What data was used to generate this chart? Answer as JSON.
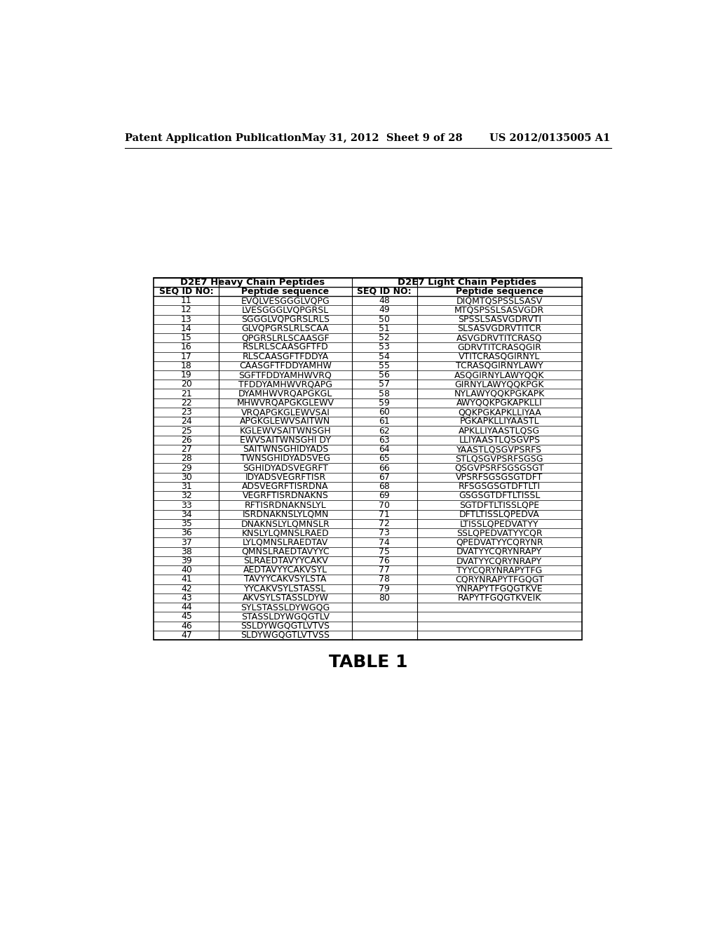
{
  "page_header_left": "Patent Application Publication",
  "page_header_mid": "May 31, 2012  Sheet 9 of 28",
  "page_header_right": "US 2012/0135005 A1",
  "table_caption": "TABLE 1",
  "col_headers": [
    "D2E7 Heavy Chain Peptides",
    "D2E7 Light Chain Peptides"
  ],
  "sub_headers": [
    "SEQ ID NO:",
    "Peptide sequence",
    "SEQ ID NO:",
    "Peptide sequence"
  ],
  "heavy_chain": [
    [
      "11",
      "EVQLVESGGGLVQPG"
    ],
    [
      "12",
      "LVESGGGLVQPGRSL"
    ],
    [
      "13",
      "SGGGLVQPGRSLRLS"
    ],
    [
      "14",
      "GLVQPGRSLRLSCAA"
    ],
    [
      "15",
      "QPGRSLRLSCAASGF"
    ],
    [
      "16",
      "RSLRLSCAASGFTFD"
    ],
    [
      "17",
      "RLSCAASGFTFDDYA"
    ],
    [
      "18",
      "CAASGFTFDDYAMHW"
    ],
    [
      "19",
      "SGFTFDDYAMHWVRQ"
    ],
    [
      "20",
      "TFDDYAMHWVRQAPG"
    ],
    [
      "21",
      "DYAMHWVRQAPGKGL"
    ],
    [
      "22",
      "MHWVRQAPGKGLEWV"
    ],
    [
      "23",
      "VRQAPGKGLEWVSAI"
    ],
    [
      "24",
      "APGKGLEWVSAITWN"
    ],
    [
      "25",
      "KGLEWVSAITWNSGH"
    ],
    [
      "26",
      "EWVSAITWNSGHI DY"
    ],
    [
      "27",
      "SAITWNSGHIDYADS"
    ],
    [
      "28",
      "TWNSGHIDYADSVEG"
    ],
    [
      "29",
      "SGHIDYADSVEGRFT"
    ],
    [
      "30",
      "IDYADSVEGRFTISR"
    ],
    [
      "31",
      "ADSVEGRFTISRDNA"
    ],
    [
      "32",
      "VEGRFTISRDNAKNS"
    ],
    [
      "33",
      "RFTISRDNAKNSLYL"
    ],
    [
      "34",
      "ISRDNAKNSLYLQMN"
    ],
    [
      "35",
      "DNAKNSLYLQMNSLR"
    ],
    [
      "36",
      "KNSLYLQMNSLRAED"
    ],
    [
      "37",
      "LYLQMNSLRAEDTAV"
    ],
    [
      "38",
      "QMNSLRAEDTAVYYC"
    ],
    [
      "39",
      "SLRAEDTAVYYCAKV"
    ],
    [
      "40",
      "AEDTAVYYCAKVSYL"
    ],
    [
      "41",
      "TAVYYCAKVSYLSTA"
    ],
    [
      "42",
      "YYCAKVSYLSTASSL"
    ],
    [
      "43",
      "AKVSYLSTASSLDYW"
    ],
    [
      "44",
      "SYLSTASSLDYWGQG"
    ],
    [
      "45",
      "STASSLDYWGQGTLV"
    ],
    [
      "46",
      "SSLDYWGQGTLVTVS"
    ],
    [
      "47",
      "SLDYWGQGTLVTVSS"
    ]
  ],
  "light_chain": [
    [
      "48",
      "DIQMTQSPSSLSASV"
    ],
    [
      "49",
      "MTQSPSSLSASVGDR"
    ],
    [
      "50",
      "SPSSLSASVGDRVTI"
    ],
    [
      "51",
      "SLSASVGDRVTITCR"
    ],
    [
      "52",
      "ASVGDRVTITCRASQ"
    ],
    [
      "53",
      "GDRVTITCRASQGIR"
    ],
    [
      "54",
      "VTITCRASQGIRNYL"
    ],
    [
      "55",
      "TCRASQGIRNYLAWY"
    ],
    [
      "56",
      "ASQGIRNYLAWYQQK"
    ],
    [
      "57",
      "GIRNYLAWYQQKPGK"
    ],
    [
      "58",
      "NYLAWYQQKPGKAPK"
    ],
    [
      "59",
      "AWYQQKPGKAPKLLI"
    ],
    [
      "60",
      "QQKPGKAPKLLIYAA"
    ],
    [
      "61",
      "PGKAPKLLIYAASTL"
    ],
    [
      "62",
      "APKLLIYAASTLQSG"
    ],
    [
      "63",
      "LLIYAASTLQSGVPS"
    ],
    [
      "64",
      "YAASTLQSGVPSRFS"
    ],
    [
      "65",
      "STLQSGVPSRFSGSG"
    ],
    [
      "66",
      "QSGVPSRFSGSGSGT"
    ],
    [
      "67",
      "VPSRFSGSGSGTDFT"
    ],
    [
      "68",
      "RFSGSGSGTDFTLTI"
    ],
    [
      "69",
      "GSGSGTDFTLTISSL"
    ],
    [
      "70",
      "SGTDFTLTISSLQPE"
    ],
    [
      "71",
      "DFTLTISSLQPEDVA"
    ],
    [
      "72",
      "LTISSLQPEDVATYY"
    ],
    [
      "73",
      "SSLQPEDVATYYCQR"
    ],
    [
      "74",
      "QPEDVATYYCQRYNR"
    ],
    [
      "75",
      "DVATYYCQRYNRAPY"
    ],
    [
      "76",
      "DVATYYCQRYNRAPY"
    ],
    [
      "77",
      "TYYCQRYNRAPYTFG"
    ],
    [
      "78",
      "CQRYNRAPYTFGQGT"
    ],
    [
      "79",
      "YNRAPYTFGQGTKVE"
    ],
    [
      "80",
      "RAPYTFGQGTKVEIK"
    ],
    [
      "",
      ""
    ],
    [
      "",
      ""
    ],
    [
      "",
      ""
    ]
  ],
  "background_color": "#ffffff",
  "text_color": "#000000"
}
